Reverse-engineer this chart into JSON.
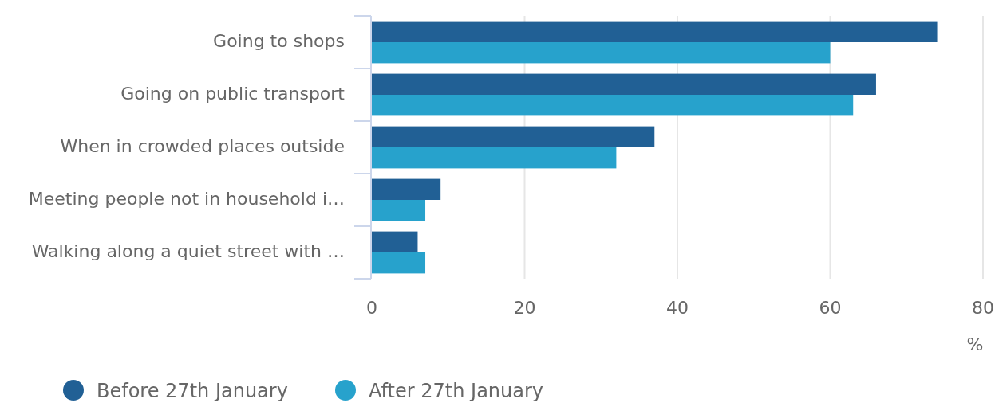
{
  "chart_data": {
    "type": "bar",
    "orientation": "horizontal",
    "categories": [
      "Going to shops",
      "Going on public transport",
      "When in crowded places outside",
      "Meeting people not in household i…",
      "Walking along a quiet street with …"
    ],
    "series": [
      {
        "name": "Before 27th January",
        "color": "#216095",
        "values": [
          74,
          66,
          37,
          9,
          6
        ]
      },
      {
        "name": "After 27th January",
        "color": "#27a2cc",
        "values": [
          60,
          63,
          32,
          7,
          7
        ]
      }
    ],
    "xlim": [
      0,
      80
    ],
    "xticks": [
      0,
      20,
      40,
      60,
      80
    ],
    "xlabel": "%",
    "grid": "x",
    "legend": "bottom"
  }
}
